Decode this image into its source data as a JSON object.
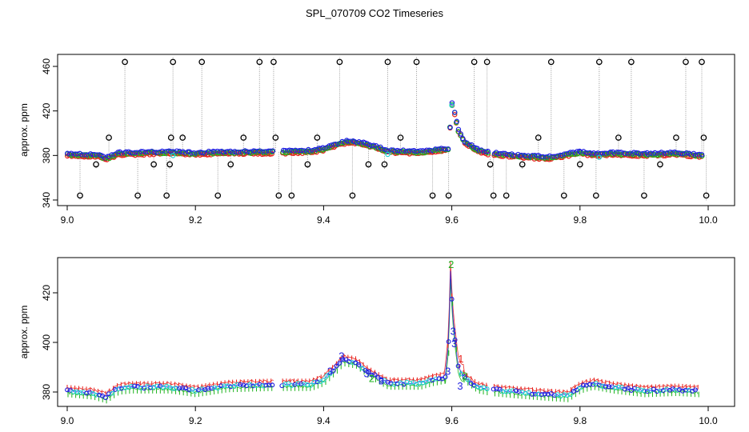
{
  "title": "SPL_070709  CO2 Timeseries",
  "colors": {
    "black": "#000000",
    "grey": "#9a9a9a",
    "red": "#e8201b",
    "green": "#1db31d",
    "blue": "#1f1fe0",
    "cyan": "#22d3d3"
  },
  "chart_data": [
    {
      "type": "scatter",
      "panel": "top",
      "ylabel": "approx. ppm",
      "xlabel": "",
      "xlim": [
        9.0,
        10.0
      ],
      "ylim": [
        340,
        470
      ],
      "xticks": [
        "9.0",
        "9.2",
        "9.4",
        "9.6",
        "9.8",
        "10.0"
      ],
      "yticks": [
        "340",
        "380",
        "420",
        "460"
      ],
      "grid": false,
      "baseline": {
        "x": [
          9.0,
          9.05,
          9.06,
          9.08,
          9.1,
          9.16,
          9.2,
          9.25,
          9.32,
          9.38,
          9.4,
          9.42,
          9.44,
          9.46,
          9.48,
          9.5,
          9.55,
          9.58,
          9.595,
          9.6,
          9.61,
          9.62,
          9.64,
          9.66,
          9.7,
          9.75,
          9.8,
          9.82,
          9.85,
          9.9,
          9.95,
          9.99
        ],
        "y": [
          381,
          380,
          377,
          382,
          382,
          383,
          382,
          383,
          383,
          384,
          386,
          390,
          393,
          391,
          388,
          384,
          383,
          385,
          386,
          428,
          403,
          392,
          385,
          382,
          380,
          378,
          383,
          381,
          382,
          381,
          382,
          380
        ]
      },
      "outliers": {
        "x": [
          9.02,
          9.045,
          9.065,
          9.09,
          9.11,
          9.135,
          9.155,
          9.16,
          9.162,
          9.165,
          9.18,
          9.21,
          9.235,
          9.255,
          9.275,
          9.3,
          9.322,
          9.325,
          9.33,
          9.35,
          9.375,
          9.39,
          9.425,
          9.445,
          9.47,
          9.495,
          9.5,
          9.52,
          9.545,
          9.57,
          9.595,
          9.635,
          9.655,
          9.66,
          9.665,
          9.685,
          9.71,
          9.735,
          9.755,
          9.775,
          9.8,
          9.825,
          9.83,
          9.86,
          9.88,
          9.9,
          9.925,
          9.95,
          9.965,
          9.99,
          9.993,
          9.997
        ],
        "y": [
          344,
          372,
          396,
          464,
          344,
          372,
          344,
          372,
          396,
          464,
          396,
          464,
          344,
          372,
          396,
          464,
          464,
          396,
          344,
          344,
          372,
          396,
          464,
          344,
          372,
          372,
          464,
          396,
          464,
          344,
          344,
          464,
          464,
          372,
          344,
          344,
          372,
          396,
          464,
          344,
          372,
          344,
          464,
          396,
          464,
          344,
          372,
          396,
          464,
          464,
          396,
          344
        ]
      },
      "series": [
        {
          "name": "red",
          "color": "red"
        },
        {
          "name": "green",
          "color": "green"
        },
        {
          "name": "blue",
          "color": "blue"
        },
        {
          "name": "cyan",
          "color": "cyan"
        }
      ],
      "gaps": [
        [
          9.323,
          9.335
        ],
        [
          9.658,
          9.665
        ]
      ]
    },
    {
      "type": "scatter",
      "panel": "bottom",
      "ylabel": "approx. ppm",
      "xlabel": "",
      "xlim": [
        9.0,
        10.0
      ],
      "ylim": [
        375,
        432
      ],
      "xticks": [
        "9.0",
        "9.2",
        "9.4",
        "9.6",
        "9.8",
        "10.0"
      ],
      "yticks": [
        "380",
        "400",
        "420"
      ],
      "grid": false,
      "baseline": {
        "x": [
          9.0,
          9.04,
          9.06,
          9.08,
          9.1,
          9.16,
          9.2,
          9.25,
          9.32,
          9.38,
          9.4,
          9.42,
          9.43,
          9.45,
          9.47,
          9.49,
          9.5,
          9.55,
          9.57,
          9.59,
          9.595,
          9.598,
          9.601,
          9.605,
          9.61,
          9.615,
          9.62,
          9.64,
          9.66,
          9.7,
          9.75,
          9.78,
          9.8,
          9.82,
          9.85,
          9.9,
          9.95,
          9.985
        ],
        "y": [
          380.5,
          379.5,
          378,
          381.5,
          382,
          382,
          380.5,
          382.5,
          383,
          383,
          385,
          390,
          393,
          392,
          388,
          385,
          383.5,
          383.5,
          385,
          386,
          400,
          428,
          412,
          401,
          390,
          387,
          386,
          382,
          381,
          380,
          379,
          378.5,
          382,
          383.5,
          382,
          380.5,
          381,
          380.5
        ]
      },
      "series": [
        {
          "name": "red",
          "color": "red",
          "marker": "1"
        },
        {
          "name": "green",
          "color": "green",
          "marker": "2"
        },
        {
          "name": "blue",
          "color": "blue",
          "marker": "3"
        },
        {
          "name": "cyan",
          "color": "cyan",
          "marker": "o"
        }
      ],
      "annotations": [
        {
          "text": "2",
          "x": 9.599,
          "y": 430,
          "color": "green"
        },
        {
          "text": "3",
          "x": 9.602,
          "y": 403,
          "color": "blue"
        },
        {
          "text": "3",
          "x": 9.604,
          "y": 398,
          "color": "blue"
        },
        {
          "text": "3",
          "x": 9.428,
          "y": 393,
          "color": "blue"
        },
        {
          "text": "3",
          "x": 9.41,
          "y": 387,
          "color": "blue"
        },
        {
          "text": "3",
          "x": 9.467,
          "y": 386,
          "color": "blue"
        },
        {
          "text": "3",
          "x": 9.613,
          "y": 381,
          "color": "blue"
        },
        {
          "text": "2",
          "x": 9.475,
          "y": 384,
          "color": "green"
        },
        {
          "text": "3",
          "x": 9.49,
          "y": 383,
          "color": "blue"
        },
        {
          "text": "3",
          "x": 9.594,
          "y": 387,
          "color": "blue"
        },
        {
          "text": "2",
          "x": 9.62,
          "y": 385,
          "color": "green"
        },
        {
          "text": "1",
          "x": 9.614,
          "y": 392,
          "color": "red"
        }
      ],
      "gaps": [
        [
          9.323,
          9.335
        ],
        [
          9.658,
          9.665
        ]
      ]
    }
  ]
}
